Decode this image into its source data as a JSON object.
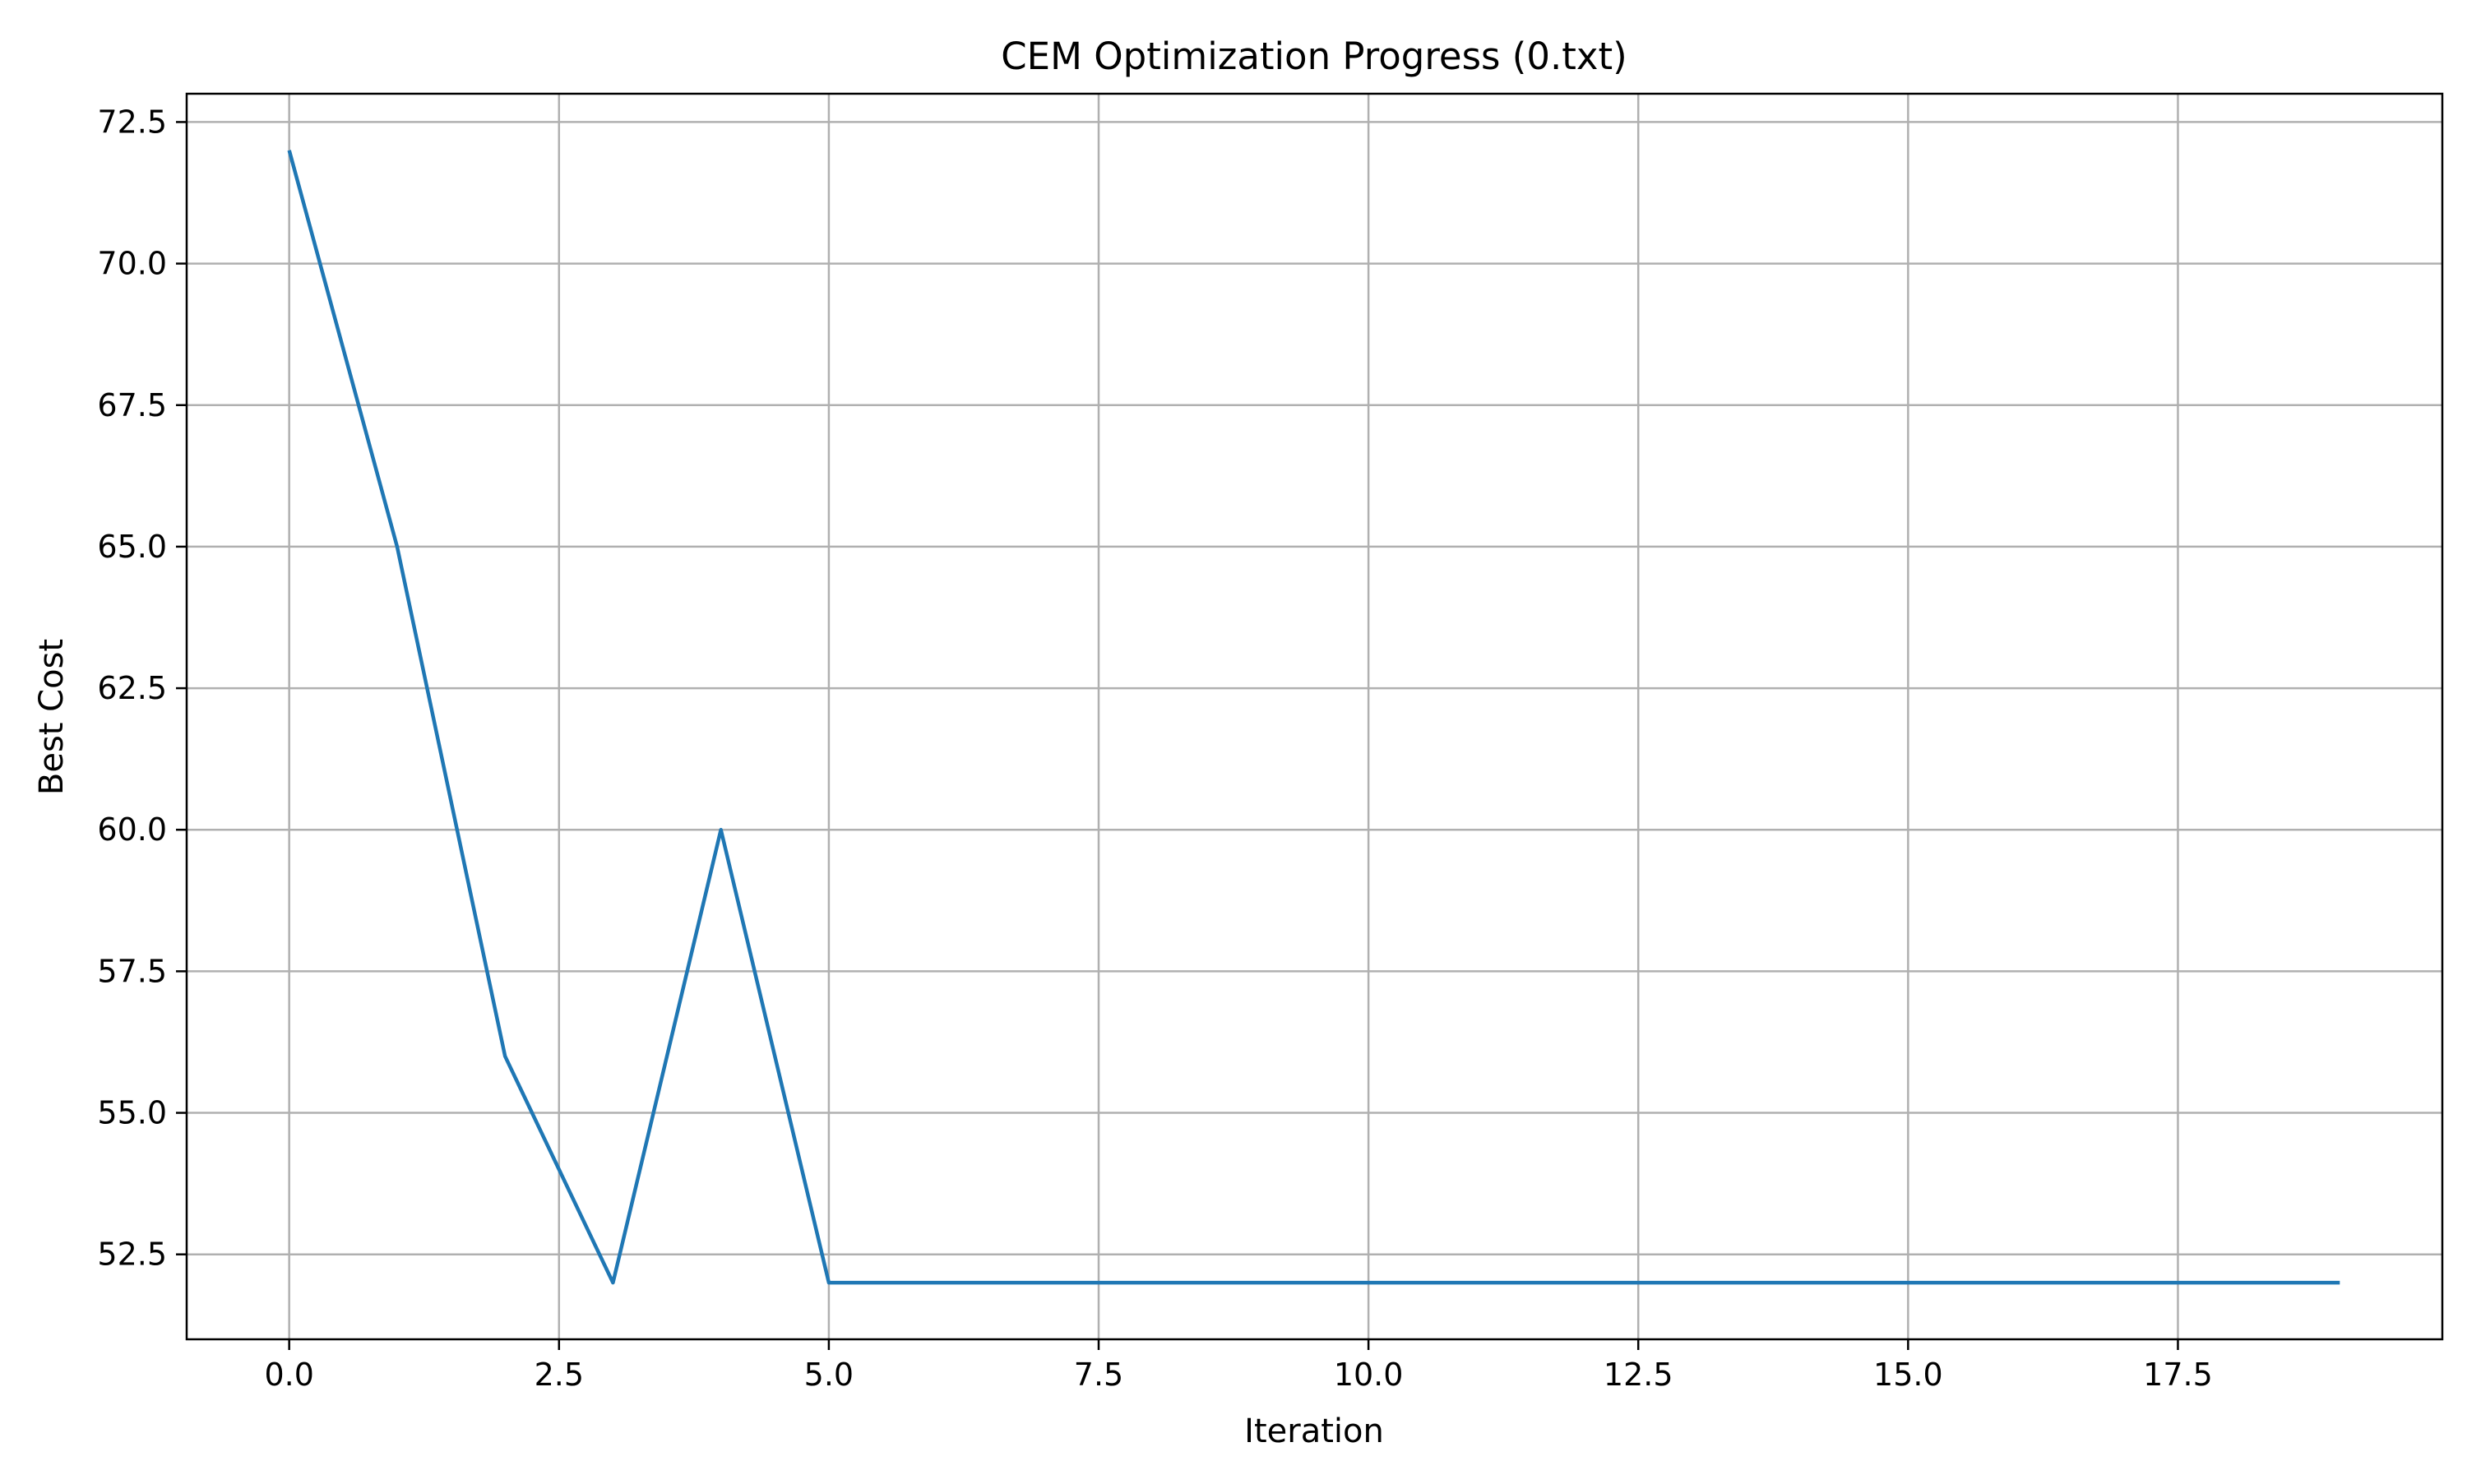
{
  "chart_data": {
    "type": "line",
    "title": "CEM Optimization Progress (0.txt)",
    "xlabel": "Iteration",
    "ylabel": "Best Cost",
    "xlim": [
      -0.95,
      19.95
    ],
    "ylim": [
      51.0,
      73.0
    ],
    "x_ticks": [
      0.0,
      2.5,
      5.0,
      7.5,
      10.0,
      12.5,
      15.0,
      17.5
    ],
    "x_tick_labels": [
      "0.0",
      "2.5",
      "5.0",
      "7.5",
      "10.0",
      "12.5",
      "15.0",
      "17.5"
    ],
    "y_ticks": [
      52.5,
      55.0,
      57.5,
      60.0,
      62.5,
      65.0,
      67.5,
      70.0,
      72.5
    ],
    "y_tick_labels": [
      "52.5",
      "55.0",
      "57.5",
      "60.0",
      "62.5",
      "65.0",
      "67.5",
      "70.0",
      "72.5"
    ],
    "grid": true,
    "legend": "none",
    "series": [
      {
        "color": "#1f77b4",
        "x": [
          0,
          1,
          2,
          3,
          4,
          5,
          6,
          7,
          8,
          9,
          10,
          11,
          12,
          13,
          14,
          15,
          16,
          17,
          18,
          19
        ],
        "y": [
          72,
          65,
          56,
          52,
          60,
          52,
          52,
          52,
          52,
          52,
          52,
          52,
          52,
          52,
          52,
          52,
          52,
          52,
          52,
          52
        ]
      }
    ]
  }
}
